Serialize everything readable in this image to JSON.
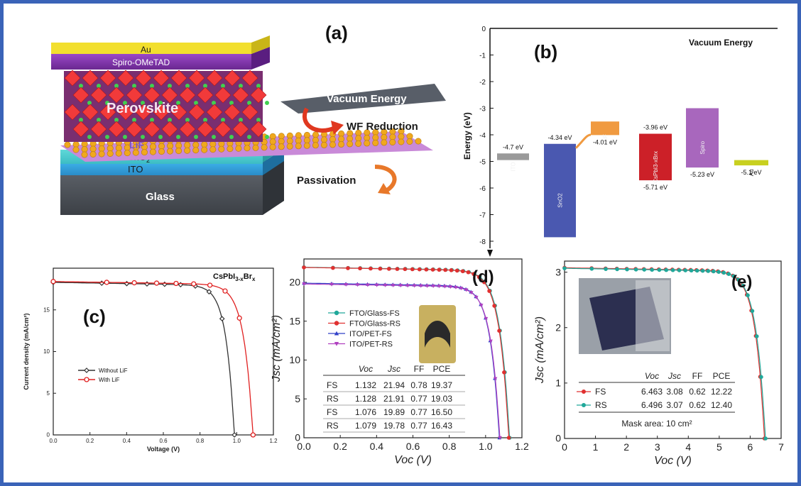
{
  "panel_a": {
    "label": "(a)",
    "layers": [
      "Au",
      "Spiro-OMeTAD",
      "Perovskite",
      "LiF",
      "SnO",
      "ITO",
      "Glass"
    ],
    "sno2_sub": "2",
    "plane_label": "Vacuum Energy",
    "wf_label": "WF Reduction",
    "passivation_label": "Passivation"
  },
  "panel_b": {
    "label": "(b)",
    "ylabel": "Energy (eV)",
    "header": "Vacuum Energy",
    "yticks": [
      "0",
      "-1",
      "-2",
      "-3",
      "-4",
      "-5",
      "-6",
      "-7",
      "-8"
    ],
    "levels": [
      {
        "name": "ITO",
        "top": -4.7,
        "bottom": -4.95,
        "top_label": "-4.7 eV",
        "bottom_label": "",
        "color": "#9a9a9a"
      },
      {
        "name": "SnO2",
        "top": -4.34,
        "bottom": -7.85,
        "top_label": "-4.34 eV",
        "bottom_label": "",
        "color": "#4a58b0"
      },
      {
        "name": "LiF",
        "top": -3.5,
        "bottom": -4.01,
        "top_label": "",
        "bottom_label": "-4.01 eV",
        "color": "#f09a40"
      },
      {
        "name": "CsPbI3-xBrx",
        "top": -3.96,
        "bottom": -5.71,
        "top_label": "-3.96 eV",
        "bottom_label": "-5.71 eV",
        "color": "#cc2028"
      },
      {
        "name": "Spiro",
        "top": -3.0,
        "bottom": -5.23,
        "top_label": "",
        "bottom_label": "-5.23 eV",
        "color": "#a867bd"
      },
      {
        "name": "Au",
        "top": -4.95,
        "bottom": -5.15,
        "top_label": "",
        "bottom_label": "-5.1 eV",
        "color": "#c8d020"
      }
    ]
  },
  "chart_data": [
    {
      "type": "line",
      "id": "c",
      "panel_label": "(c)",
      "title": "CsPbI",
      "title_sub": "3-x",
      "title_mid": "Br",
      "title_sub2": "x",
      "xlabel": "Voltage (V)",
      "ylabel": "Current density (mA/cm²)",
      "xlim": [
        0,
        1.3
      ],
      "ylim": [
        0,
        20
      ],
      "xticks": [
        "0.0",
        "0.2",
        "0.4",
        "0.6",
        "0.8",
        "1.0",
        "1.2"
      ],
      "yticks": [
        "0",
        "5",
        "10",
        "15"
      ],
      "legend_position": "center-left",
      "series": [
        {
          "name": "Without LiF",
          "color": "#333333",
          "voc": 1.07,
          "jsc": 18.3,
          "n": 11
        },
        {
          "name": "With LiF",
          "color": "#e02020",
          "voc": 1.18,
          "jsc": 18.4,
          "n": 9
        }
      ]
    },
    {
      "type": "line",
      "id": "d",
      "panel_label": "(d)",
      "xlabel": "Voc (V)",
      "ylabel": "Jsc (mA/cm²)",
      "xlim": [
        0,
        1.2
      ],
      "ylim": [
        0,
        23
      ],
      "xticks": [
        "0.0",
        "0.2",
        "0.4",
        "0.6",
        "0.8",
        "1.0",
        "1.2"
      ],
      "yticks": [
        "0",
        "5",
        "10",
        "15",
        "20"
      ],
      "legend_position": "center-left",
      "series": [
        {
          "name": "FTO/Glass-FS",
          "color": "#20a89a",
          "marker": "circle",
          "voc": 1.132,
          "jsc": 21.94,
          "n": 11
        },
        {
          "name": "FTO/Glass-RS",
          "color": "#e03030",
          "marker": "circle",
          "voc": 1.128,
          "jsc": 21.91,
          "n": 11
        },
        {
          "name": "ITO/PET-FS",
          "color": "#3040c8",
          "marker": "triangle-up",
          "voc": 1.076,
          "jsc": 19.89,
          "n": 11
        },
        {
          "name": "ITO/PET-RS",
          "color": "#b040c0",
          "marker": "triangle-down",
          "voc": 1.079,
          "jsc": 19.78,
          "n": 11
        }
      ],
      "table": {
        "headers": [
          "",
          "Voc",
          "Jsc",
          "FF",
          "PCE"
        ],
        "rows": [
          [
            "FS",
            "1.132",
            "21.94",
            "0.78",
            "19.37"
          ],
          [
            "RS",
            "1.128",
            "21.91",
            "0.77",
            "19.03"
          ],
          [
            "FS",
            "1.076",
            "19.89",
            "0.77",
            "16.50"
          ],
          [
            "RS",
            "1.079",
            "19.78",
            "0.77",
            "16.43"
          ]
        ]
      }
    },
    {
      "type": "line",
      "id": "e",
      "panel_label": "(e)",
      "xlabel": "Voc (V)",
      "ylabel": "Jsc (mA/cm²)",
      "xlim": [
        0,
        7
      ],
      "ylim": [
        0,
        3.2
      ],
      "xticks": [
        "0",
        "1",
        "2",
        "3",
        "4",
        "5",
        "6",
        "7"
      ],
      "yticks": [
        "0",
        "1",
        "2",
        "3"
      ],
      "legend_position": "center",
      "series": [
        {
          "name": "FS",
          "color": "#e03030",
          "marker": "circle",
          "voc": 6.463,
          "jsc": 3.08,
          "n": 11
        },
        {
          "name": "RS",
          "color": "#20a89a",
          "marker": "circle",
          "voc": 6.496,
          "jsc": 3.07,
          "n": 11
        }
      ],
      "table": {
        "headers": [
          "",
          "Voc",
          "Jsc",
          "FF",
          "PCE"
        ],
        "rows": [
          [
            "FS",
            "6.463",
            "3.08",
            "0.62",
            "12.22"
          ],
          [
            "RS",
            "6.496",
            "3.07",
            "0.62",
            "12.40"
          ]
        ]
      },
      "note": "Mask area: 10 cm²"
    }
  ]
}
